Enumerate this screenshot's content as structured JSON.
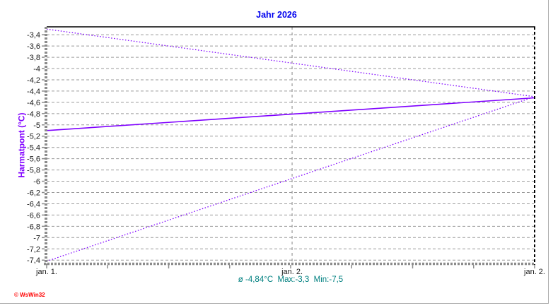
{
  "header": {
    "title": "Jahr 2026"
  },
  "y_axis": {
    "label": "Harmatpont  (°C)"
  },
  "footer": {
    "stats": "ø -4,84°C  Max:-3,3  Min:-7,5"
  },
  "watermark": "© WsWin32",
  "colors": {
    "title": "#0000ee",
    "y_label": "#8000ff",
    "stats": "#008080",
    "watermark": "#ff0000",
    "line": "#7f00ff",
    "grid": "#9a9a9a",
    "axis": "#8c8c8c",
    "border": "#000000",
    "tick_text": "#1a1a1a"
  },
  "chart_data": {
    "type": "line",
    "title": "Jahr 2026",
    "xlabel": "",
    "ylabel": "Harmatpont (°C)",
    "ylim": [
      -7.46,
      -3.26
    ],
    "grid": true,
    "legend": "none",
    "y_ticks": [
      {
        "v": -3.4,
        "label": "-3,4"
      },
      {
        "v": -3.6,
        "label": "-3,6"
      },
      {
        "v": -3.8,
        "label": "-3,8"
      },
      {
        "v": -4.0,
        "label": "-4"
      },
      {
        "v": -4.2,
        "label": "-4,2"
      },
      {
        "v": -4.4,
        "label": "-4,4"
      },
      {
        "v": -4.6,
        "label": "-4,6"
      },
      {
        "v": -4.8,
        "label": "-4,8"
      },
      {
        "v": -5.0,
        "label": "-5"
      },
      {
        "v": -5.2,
        "label": "-5,2"
      },
      {
        "v": -5.4,
        "label": "-5,4"
      },
      {
        "v": -5.6,
        "label": "-5,6"
      },
      {
        "v": -5.8,
        "label": "-5,8"
      },
      {
        "v": -6.0,
        "label": "-6"
      },
      {
        "v": -6.2,
        "label": "-6,2"
      },
      {
        "v": -6.4,
        "label": "-6,4"
      },
      {
        "v": -6.6,
        "label": "-6,6"
      },
      {
        "v": -6.8,
        "label": "-6,8"
      },
      {
        "v": -7.0,
        "label": "-7"
      },
      {
        "v": -7.2,
        "label": "-7,2"
      },
      {
        "v": -7.4,
        "label": "-7,4"
      }
    ],
    "x_ticks": [
      {
        "frac": 0,
        "label": "jan. 1."
      },
      {
        "frac": 0.503,
        "label": "jan. 2."
      },
      {
        "frac": 1,
        "label": "jan. 2."
      }
    ],
    "x_minor_divisions": 8,
    "series": [
      {
        "name": "Max",
        "style": "dotted",
        "points": [
          [
            0,
            -3.3
          ],
          [
            1,
            -4.5
          ]
        ]
      },
      {
        "name": "Mittel",
        "style": "solid",
        "points": [
          [
            0,
            -5.1
          ],
          [
            1,
            -4.52
          ]
        ]
      },
      {
        "name": "Min",
        "style": "dotted",
        "points": [
          [
            0,
            -7.42
          ],
          [
            1,
            -4.5
          ]
        ]
      }
    ],
    "stats": {
      "mean": "-4,84",
      "max": "-3,3",
      "min": "-7,5"
    }
  }
}
